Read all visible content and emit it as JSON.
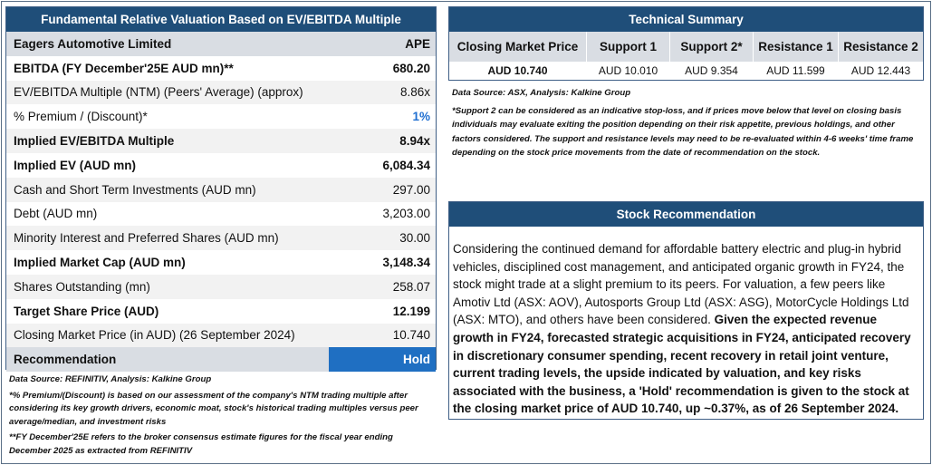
{
  "valuation": {
    "title": "Fundamental Relative Valuation Based on EV/EBITDA Multiple",
    "company": "Eagers Automotive Limited",
    "ticker": "APE",
    "rows": [
      {
        "label": "EBITDA (FY December'25E AUD mn)**",
        "value": "680.20"
      },
      {
        "label": "EV/EBITDA Multiple (NTM)  (Peers' Average) (approx)",
        "value": "8.86x"
      },
      {
        "label": "% Premium / (Discount)*",
        "value": "1%"
      },
      {
        "label": "Implied EV/EBITDA Multiple",
        "value": "8.94x"
      },
      {
        "label": "Implied EV (AUD mn)",
        "value": "6,084.34"
      },
      {
        "label": "Cash and Short Term Investments (AUD mn)",
        "value": "297.00"
      },
      {
        "label": "Debt (AUD mn)",
        "value": "3,203.00"
      },
      {
        "label": "Minority Interest and Preferred Shares (AUD mn)",
        "value": "30.00"
      },
      {
        "label": "Implied Market Cap (AUD mn)",
        "value": "3,148.34"
      },
      {
        "label": "Shares Outstanding (mn)",
        "value": "258.07"
      },
      {
        "label": "Target Share Price (AUD)",
        "value": "12.199"
      },
      {
        "label": "Closing Market Price (in AUD) (26 September 2024)",
        "value": "10.740"
      },
      {
        "label": "Recommendation",
        "value": "Hold"
      }
    ],
    "source": "Data Source: REFINITIV, Analysis: Kalkine Group",
    "note1": "*% Premium/(Discount) is based on our assessment of the company's NTM trading multiple after considering its key growth drivers, economic moat, stock's historical trading multiples versus peer average/median, and investment risks",
    "note2": "**FY December'25E refers to the broker consensus estimate figures for the fiscal year ending December 2025  as extracted from REFINITIV"
  },
  "technical": {
    "title": "Technical Summary",
    "headers": [
      "Closing Market Price",
      "Support 1",
      "Support 2*",
      "Resistance 1",
      "Resistance 2"
    ],
    "values": [
      "AUD 10.740",
      "AUD 10.010",
      "AUD 9.354",
      "AUD 11.599",
      "AUD 12.443"
    ],
    "source": "Data Source: ASX, Analysis: Kalkine Group",
    "note": "*Support 2 can be considered as an indicative stop-loss, and if prices move below that level on closing basis individuals may evaluate exiting the position depending on their risk appetite, previous holdings, and other factors considered. The support and resistance levels may need to be re-evaluated within 4-6 weeks' time frame depending on the stock price movements from the date of recommendation on the stock."
  },
  "recommendation": {
    "title": "Stock Recommendation",
    "text_plain": "Considering the continued demand for affordable battery electric and plug-in hybrid vehicles, disciplined cost management, and anticipated organic growth in FY24, the stock might trade at a slight premium to its peers. For valuation, a few peers like Amotiv Ltd (ASX: AOV), Autosports Group Ltd (ASX: ASG), MotorCycle Holdings Ltd (ASX: MTO), and others have been considered. ",
    "text_bold": "Given the expected revenue growth in FY24, forecasted strategic acquisitions in FY24, anticipated recovery in discretionary consumer spending, recent recovery in retail joint venture, current trading levels, the upside indicated by valuation, and key risks associated with the business, a 'Hold' recommendation is given to the stock at the closing market price of AUD 10.740, up ~0.37%, as of 26 September 2024."
  },
  "colors": {
    "header_bg": "#1f4e79",
    "row_shade": "#f2f2f2",
    "band_gray": "#d9dde3",
    "hold_blue": "#1f6fc2",
    "premium_blue": "#1f6fd1"
  }
}
